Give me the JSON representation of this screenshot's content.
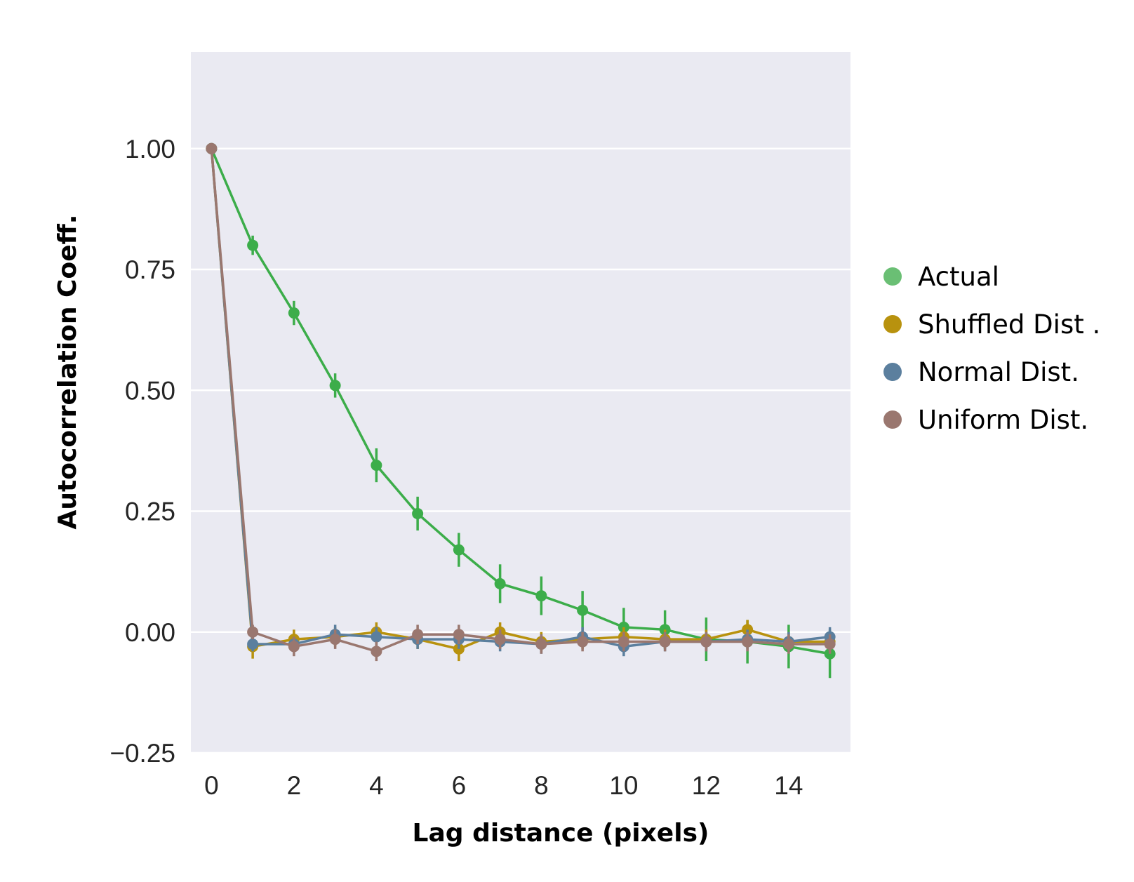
{
  "chart_data": {
    "type": "line",
    "title": "",
    "xlabel": "Lag distance (pixels)",
    "ylabel": "Autocorrelation Coeff.",
    "xlim": [
      -0.5,
      15.5
    ],
    "ylim": [
      -0.25,
      1.2
    ],
    "x_ticks": [
      0,
      2,
      4,
      6,
      8,
      10,
      12,
      14
    ],
    "x_tick_labels": [
      "0",
      "2",
      "4",
      "6",
      "8",
      "10",
      "12",
      "14"
    ],
    "y_ticks": [
      -0.25,
      0.0,
      0.25,
      0.5,
      0.75,
      1.0
    ],
    "y_tick_labels": [
      "−0.25",
      "0.00",
      "0.25",
      "0.50",
      "0.75",
      "1.00"
    ],
    "grid": true,
    "background": "#eaeaf2",
    "legend_position": "right",
    "series": [
      {
        "name": "Actual",
        "color": "#3cad4a",
        "legend_color": "#6abf74",
        "x": [
          0,
          1,
          2,
          3,
          4,
          5,
          6,
          7,
          8,
          9,
          10,
          11,
          12,
          13,
          14,
          15
        ],
        "y": [
          1.0,
          0.8,
          0.66,
          0.51,
          0.345,
          0.245,
          0.17,
          0.1,
          0.075,
          0.045,
          0.01,
          0.005,
          -0.015,
          -0.02,
          -0.03,
          -0.045
        ],
        "err": [
          0.0,
          0.02,
          0.025,
          0.025,
          0.035,
          0.035,
          0.035,
          0.04,
          0.04,
          0.04,
          0.04,
          0.04,
          0.045,
          0.045,
          0.045,
          0.05
        ]
      },
      {
        "name": "Shuffled Dist .",
        "color": "#b8920e",
        "legend_color": "#b8920e",
        "x": [
          0,
          1,
          2,
          3,
          4,
          5,
          6,
          7,
          8,
          9,
          10,
          11,
          12,
          13,
          14,
          15
        ],
        "y": [
          1.0,
          -0.03,
          -0.015,
          -0.01,
          0.0,
          -0.015,
          -0.035,
          0.0,
          -0.02,
          -0.015,
          -0.01,
          -0.015,
          -0.015,
          0.005,
          -0.02,
          -0.02
        ],
        "err": [
          0.0,
          0.025,
          0.02,
          0.02,
          0.02,
          0.02,
          0.025,
          0.02,
          0.02,
          0.02,
          0.02,
          0.02,
          0.02,
          0.02,
          0.02,
          0.02
        ]
      },
      {
        "name": "Normal Dist.",
        "color": "#5b7f9e",
        "legend_color": "#5b7f9e",
        "x": [
          0,
          1,
          2,
          3,
          4,
          5,
          6,
          7,
          8,
          9,
          10,
          11,
          12,
          13,
          14,
          15
        ],
        "y": [
          1.0,
          -0.025,
          -0.025,
          -0.005,
          -0.01,
          -0.015,
          -0.015,
          -0.02,
          -0.025,
          -0.01,
          -0.03,
          -0.02,
          -0.02,
          -0.015,
          -0.02,
          -0.01
        ],
        "err": [
          0.0,
          0.015,
          0.015,
          0.02,
          0.02,
          0.02,
          0.02,
          0.02,
          0.02,
          0.02,
          0.02,
          0.02,
          0.02,
          0.02,
          0.02,
          0.02
        ]
      },
      {
        "name": "Uniform Dist.",
        "color": "#9a776f",
        "legend_color": "#9a776f",
        "x": [
          0,
          1,
          2,
          3,
          4,
          5,
          6,
          7,
          8,
          9,
          10,
          11,
          12,
          13,
          14,
          15
        ],
        "y": [
          1.0,
          0.0,
          -0.03,
          -0.015,
          -0.04,
          -0.005,
          -0.005,
          -0.015,
          -0.025,
          -0.02,
          -0.02,
          -0.02,
          -0.02,
          -0.02,
          -0.025,
          -0.025
        ],
        "err": [
          0.0,
          0.015,
          0.02,
          0.02,
          0.02,
          0.02,
          0.02,
          0.02,
          0.02,
          0.02,
          0.02,
          0.02,
          0.02,
          0.02,
          0.02,
          0.02
        ]
      }
    ]
  }
}
